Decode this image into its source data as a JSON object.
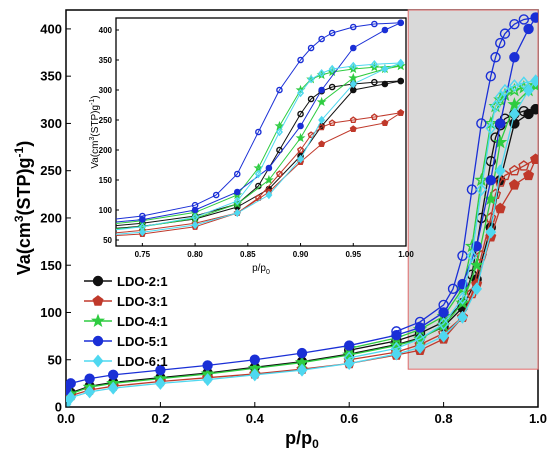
{
  "chart_data": [
    {
      "type": "scatter",
      "xlabel": "p/p",
      "xlabel_sub": "0",
      "ylabel": "Va(cm",
      "ylabel_sup": "3",
      "ylabel_tail": "(STP)g",
      "ylabel_sup2": "-1",
      "ylabel_end": ")",
      "xlim": [
        0.0,
        1.0
      ],
      "ylim": [
        0,
        420
      ],
      "xticks": [
        "0.0",
        "0.2",
        "0.4",
        "0.6",
        "0.8",
        "1.0"
      ],
      "xtick_values": [
        0.0,
        0.2,
        0.4,
        0.6,
        0.8,
        1.0
      ],
      "yticks": [
        "0",
        "50",
        "100",
        "150",
        "200",
        "250",
        "300",
        "350",
        "400"
      ],
      "ytick_values": [
        0,
        50,
        100,
        150,
        200,
        250,
        300,
        350,
        400
      ],
      "highlight_region": {
        "x": [
          0.725,
          1.0
        ],
        "y": [
          40,
          420
        ],
        "fill": "#d9d9d9",
        "stroke": "#e06a6a"
      },
      "legend": {
        "placement": "left-middle",
        "entries": [
          "LDO-2:1",
          "LDO-3:1",
          "LDO-4:1",
          "LDO-5:1",
          "LDO-6:1"
        ]
      },
      "series": [
        {
          "name": "LDO-2:1",
          "color": "#111111",
          "marker": "circle",
          "adsorption": {
            "x": [
              0.0,
              0.01,
              0.05,
              0.1,
              0.2,
              0.3,
              0.4,
              0.5,
              0.6,
              0.7,
              0.75,
              0.8,
              0.84,
              0.87,
              0.9,
              0.92,
              0.95,
              0.98,
              0.995
            ],
            "y": [
              5,
              15,
              22,
              26,
              31,
              36,
              42,
              48,
              56,
              66,
              73,
              85,
              105,
              135,
              190,
              240,
              300,
              310,
              315
            ]
          },
          "desorption": {
            "x": [
              0.995,
              0.97,
              0.95,
              0.93,
              0.92,
              0.91,
              0.9,
              0.88,
              0.86,
              0.84,
              0.8,
              0.75,
              0.7,
              0.6
            ],
            "y": [
              315,
              313,
              310,
              305,
              298,
              285,
              260,
              200,
              140,
              110,
              90,
              78,
              70,
              60
            ]
          }
        },
        {
          "name": "LDO-3:1",
          "color": "#c0392b",
          "marker": "pentagon",
          "adsorption": {
            "x": [
              0.0,
              0.01,
              0.05,
              0.1,
              0.2,
              0.3,
              0.4,
              0.5,
              0.6,
              0.7,
              0.75,
              0.8,
              0.84,
              0.87,
              0.9,
              0.92,
              0.95,
              0.98,
              0.995
            ],
            "y": [
              4,
              12,
              18,
              22,
              27,
              31,
              35,
              40,
              46,
              55,
              60,
              72,
              95,
              130,
              180,
              210,
              235,
              245,
              262
            ]
          },
          "desorption": {
            "x": [
              0.995,
              0.97,
              0.95,
              0.93,
              0.92,
              0.91,
              0.9,
              0.88,
              0.86,
              0.84,
              0.8,
              0.75,
              0.7,
              0.6
            ],
            "y": [
              262,
              255,
              250,
              245,
              238,
              225,
              200,
              160,
              120,
              95,
              78,
              66,
              58,
              50
            ]
          }
        },
        {
          "name": "LDO-4:1",
          "color": "#2ecc40",
          "marker": "star",
          "adsorption": {
            "x": [
              0.0,
              0.01,
              0.05,
              0.1,
              0.2,
              0.3,
              0.4,
              0.5,
              0.6,
              0.7,
              0.75,
              0.8,
              0.84,
              0.87,
              0.9,
              0.92,
              0.95,
              0.98,
              0.995
            ],
            "y": [
              5,
              14,
              21,
              25,
              30,
              35,
              41,
              47,
              55,
              65,
              72,
              86,
              110,
              150,
              220,
              280,
              320,
              335,
              340
            ]
          },
          "desorption": {
            "x": [
              0.995,
              0.97,
              0.95,
              0.93,
              0.92,
              0.91,
              0.9,
              0.88,
              0.86,
              0.84,
              0.8,
              0.75,
              0.7,
              0.6
            ],
            "y": [
              340,
              338,
              335,
              330,
              325,
              318,
              300,
              240,
              170,
              125,
              96,
              82,
              73,
              62
            ]
          }
        },
        {
          "name": "LDO-5:1",
          "color": "#1a2fd6",
          "marker": "circle",
          "adsorption": {
            "x": [
              0.0,
              0.01,
              0.05,
              0.1,
              0.2,
              0.3,
              0.4,
              0.5,
              0.6,
              0.7,
              0.75,
              0.8,
              0.84,
              0.87,
              0.9,
              0.92,
              0.95,
              0.98,
              0.995
            ],
            "y": [
              18,
              25,
              30,
              34,
              39,
              44,
              50,
              57,
              65,
              76,
              84,
              100,
              130,
              170,
              240,
              300,
              370,
              400,
              412
            ]
          },
          "desorption": {
            "x": [
              0.995,
              0.97,
              0.95,
              0.93,
              0.92,
              0.91,
              0.9,
              0.88,
              0.86,
              0.84,
              0.82,
              0.8,
              0.75,
              0.7
            ],
            "y": [
              412,
              410,
              405,
              395,
              385,
              370,
              350,
              300,
              230,
              160,
              125,
              108,
              90,
              80
            ]
          }
        },
        {
          "name": "LDO-6:1",
          "color": "#4fd8f0",
          "marker": "diamond",
          "adsorption": {
            "x": [
              0.0,
              0.01,
              0.05,
              0.1,
              0.2,
              0.3,
              0.4,
              0.5,
              0.6,
              0.7,
              0.75,
              0.8,
              0.84,
              0.87,
              0.9,
              0.92,
              0.95,
              0.98,
              0.995
            ],
            "y": [
              3,
              10,
              16,
              20,
              25,
              29,
              34,
              39,
              46,
              56,
              63,
              75,
              95,
              125,
              185,
              250,
              310,
              335,
              345
            ]
          },
          "desorption": {
            "x": [
              0.995,
              0.97,
              0.95,
              0.93,
              0.92,
              0.91,
              0.9,
              0.88,
              0.86,
              0.84,
              0.8,
              0.75,
              0.7,
              0.6
            ],
            "y": [
              345,
              343,
              340,
              335,
              328,
              318,
              295,
              230,
              160,
              115,
              88,
              72,
              62,
              52
            ]
          }
        }
      ]
    },
    {
      "type": "scatter",
      "xlabel": "p/p",
      "xlabel_sub": "0",
      "ylabel": "Va(cm",
      "ylabel_sup": "3",
      "ylabel_tail": "(STP)g",
      "ylabel_sup2": "-1",
      "ylabel_end": ")",
      "xlim": [
        0.725,
        1.0
      ],
      "ylim": [
        40,
        420
      ],
      "xticks": [
        "0.75",
        "0.80",
        "0.85",
        "0.90",
        "0.95",
        "1.00"
      ],
      "xtick_values": [
        0.75,
        0.8,
        0.85,
        0.9,
        0.95,
        1.0
      ],
      "yticks": [
        "50",
        "100",
        "150",
        "200",
        "250",
        "300",
        "350",
        "400"
      ],
      "ytick_values": [
        50,
        100,
        150,
        200,
        250,
        300,
        350,
        400
      ],
      "note": "zoomed view of the shaded region; same series as the main plot"
    }
  ]
}
